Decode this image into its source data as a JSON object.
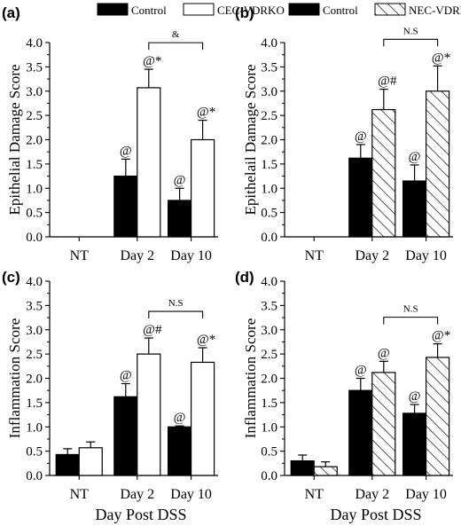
{
  "chart_data": [
    {
      "panel_label": "(a)",
      "type": "bar",
      "legend": [
        "Control",
        "CEC-VDRKO"
      ],
      "ylabel": "Epithelial Damage Score",
      "ylim": [
        0,
        4.0
      ],
      "yticks": [
        "0.0",
        "0.5",
        "1.0",
        "1.5",
        "2.0",
        "2.5",
        "3.0",
        "3.5",
        "4.0"
      ],
      "categories": [
        "NT",
        "Day 2",
        "Day 10"
      ],
      "series": [
        {
          "values": [
            0,
            1.25,
            0.75
          ],
          "errors": [
            0,
            0.35,
            0.25
          ],
          "annotations": [
            "",
            "@",
            "@"
          ]
        },
        {
          "values": [
            0,
            3.07,
            2.0
          ],
          "errors": [
            0,
            0.38,
            0.4
          ],
          "annotations": [
            "",
            "@*",
            "@*"
          ]
        }
      ],
      "bracket": {
        "label": "&",
        "from": 1,
        "to": 2
      },
      "colors": {
        "control": "#000000",
        "ko": "#ffffff"
      }
    },
    {
      "panel_label": "(b)",
      "type": "bar",
      "legend": [
        "Control",
        "NEC-VDRKO"
      ],
      "ylabel": "Epithelail Damage Score",
      "ylim": [
        0,
        4.0
      ],
      "yticks": [
        "0.0",
        "0.5",
        "1.0",
        "1.5",
        "2.0",
        "2.5",
        "3.0",
        "3.5",
        "4.0"
      ],
      "categories": [
        "NT",
        "Day 2",
        "Day 10"
      ],
      "series": [
        {
          "values": [
            0,
            1.62,
            1.15
          ],
          "errors": [
            0,
            0.28,
            0.33
          ],
          "annotations": [
            "",
            "@",
            "@"
          ]
        },
        {
          "values": [
            0,
            2.62,
            3.0
          ],
          "errors": [
            0,
            0.42,
            0.52
          ],
          "annotations": [
            "",
            "@#",
            "@*"
          ]
        }
      ],
      "bracket": {
        "label": "N.S",
        "from": 1,
        "to": 2
      },
      "colors": {
        "control": "#000000",
        "ko": "hatched"
      }
    },
    {
      "panel_label": "(c)",
      "type": "bar",
      "ylabel": "Inflammation Score",
      "xlabel": "Day Post DSS",
      "ylim": [
        0,
        4.0
      ],
      "yticks": [
        "0.0",
        "0.5",
        "1.0",
        "1.5",
        "2.0",
        "2.5",
        "3.0",
        "3.5",
        "4.0"
      ],
      "categories": [
        "NT",
        "Day 2",
        "Day 10"
      ],
      "series": [
        {
          "values": [
            0.43,
            1.62,
            1.0
          ],
          "errors": [
            0.12,
            0.27,
            0.02
          ],
          "annotations": [
            "",
            "@",
            "@"
          ]
        },
        {
          "values": [
            0.57,
            2.5,
            2.33
          ],
          "errors": [
            0.12,
            0.33,
            0.3
          ],
          "annotations": [
            "",
            "@#",
            "@*"
          ]
        }
      ],
      "bracket": {
        "label": "N.S",
        "from": 1,
        "to": 2
      },
      "colors": {
        "control": "#000000",
        "ko": "#ffffff"
      }
    },
    {
      "panel_label": "(d)",
      "type": "bar",
      "ylabel": "Inflammation Score",
      "xlabel": "Day Post DSS",
      "ylim": [
        0,
        4.0
      ],
      "yticks": [
        "0.0",
        "0.5",
        "1.0",
        "1.5",
        "2.0",
        "2.5",
        "3.0",
        "3.5",
        "4.0"
      ],
      "categories": [
        "NT",
        "Day 2",
        "Day 10"
      ],
      "series": [
        {
          "values": [
            0.3,
            1.75,
            1.28
          ],
          "errors": [
            0.12,
            0.25,
            0.18
          ],
          "annotations": [
            "",
            "@",
            "@"
          ]
        },
        {
          "values": [
            0.18,
            2.12,
            2.43
          ],
          "errors": [
            0.1,
            0.23,
            0.28
          ],
          "annotations": [
            "",
            "@",
            "@*"
          ]
        }
      ],
      "bracket": {
        "label": "N.S",
        "from": 1,
        "to": 2
      },
      "colors": {
        "control": "#000000",
        "ko": "hatched"
      }
    }
  ]
}
